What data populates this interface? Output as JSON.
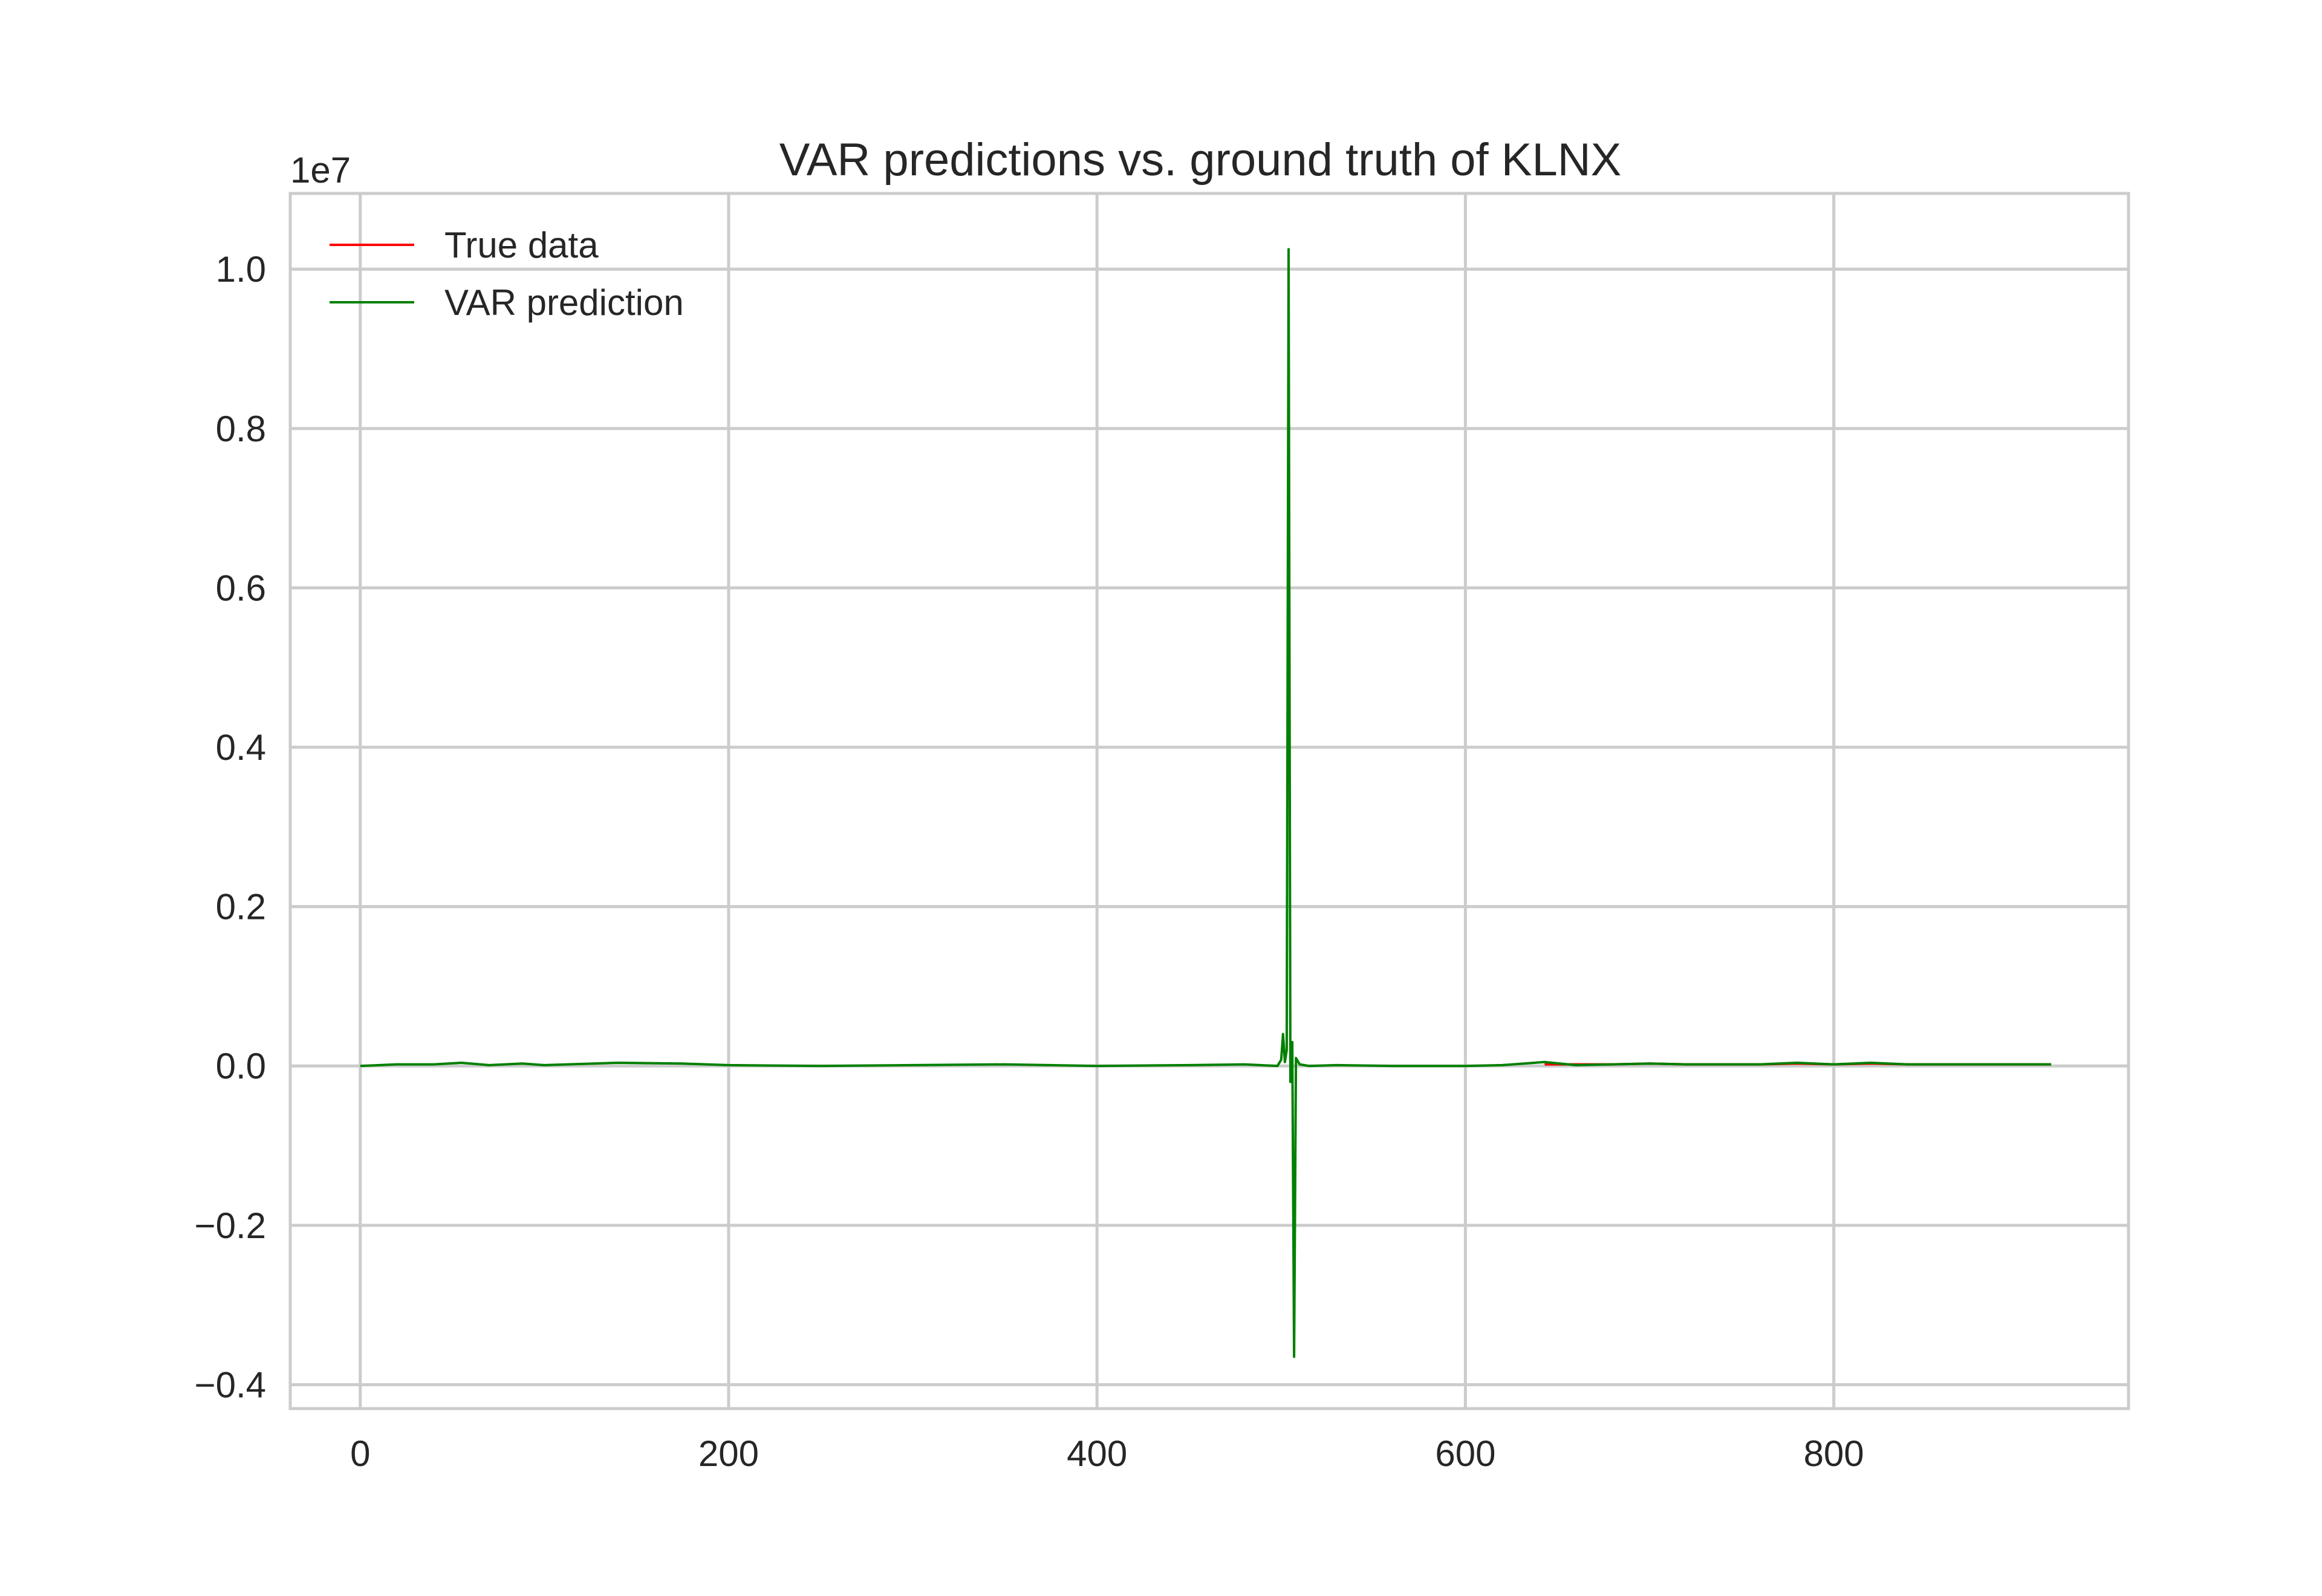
{
  "chart_data": {
    "type": "line",
    "title": "VAR predictions vs. ground truth of KLNX",
    "xlabel": "",
    "ylabel": "",
    "y_offset_text": "1e7",
    "xlim": [
      -38,
      960
    ],
    "ylim": [
      -0.43,
      1.095
    ],
    "x_ticks": [
      0,
      200,
      400,
      600,
      800
    ],
    "x_tick_labels": [
      "0",
      "200",
      "400",
      "600",
      "800"
    ],
    "y_ticks": [
      -0.4,
      -0.2,
      0.0,
      0.2,
      0.4,
      0.6,
      0.8,
      1.0
    ],
    "y_tick_labels": [
      "−0.4",
      "−0.2",
      "0.0",
      "0.2",
      "0.4",
      "0.6",
      "0.8",
      "1.0"
    ],
    "grid": true,
    "legend_position": "top-left",
    "series": [
      {
        "name": "True data",
        "color": "#ff0000",
        "x": [
          643,
          660,
          680,
          700,
          720,
          740,
          760,
          780,
          800,
          820,
          840,
          860,
          880,
          900,
          918
        ],
        "values": [
          0.002,
          0.002,
          0.002,
          0.003,
          0.002,
          0.002,
          0.002,
          0.003,
          0.002,
          0.003,
          0.002,
          0.002,
          0.002,
          0.002,
          0.002
        ]
      },
      {
        "name": "VAR prediction",
        "color": "#008000",
        "x": [
          0,
          20,
          40,
          55,
          70,
          88,
          100,
          140,
          175,
          200,
          250,
          300,
          350,
          400,
          450,
          480,
          498,
          500,
          501,
          502,
          503,
          504,
          505,
          506,
          507,
          508,
          510,
          515,
          530,
          560,
          600,
          620,
          643,
          660,
          680,
          700,
          720,
          740,
          760,
          780,
          800,
          820,
          840,
          860,
          880,
          900,
          918
        ],
        "values": [
          0.0,
          0.002,
          0.002,
          0.004,
          0.001,
          0.003,
          0.001,
          0.004,
          0.003,
          0.001,
          0.0,
          0.001,
          0.002,
          0.0,
          0.001,
          0.002,
          0.0,
          0.008,
          0.04,
          0.005,
          0.02,
          1.025,
          -0.02,
          0.03,
          -0.365,
          0.01,
          0.002,
          0.0,
          0.001,
          0.0,
          0.0,
          0.001,
          0.005,
          0.001,
          0.002,
          0.003,
          0.002,
          0.002,
          0.002,
          0.004,
          0.002,
          0.004,
          0.002,
          0.002,
          0.002,
          0.002,
          0.002
        ]
      }
    ]
  }
}
